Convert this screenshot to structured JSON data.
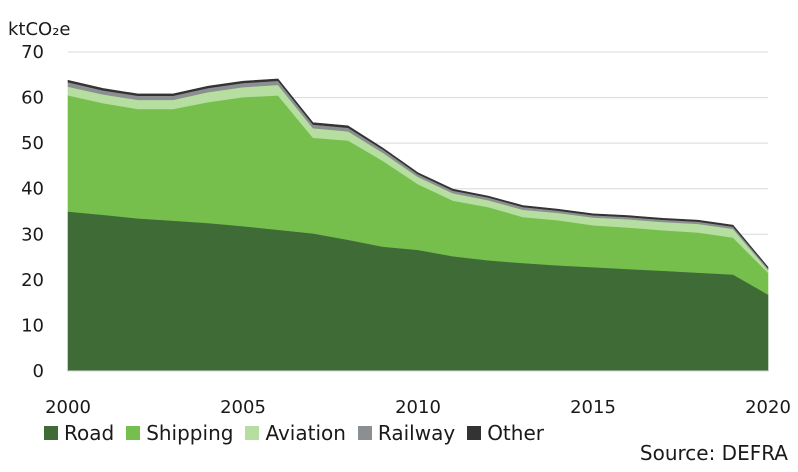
{
  "chart_data": {
    "type": "area",
    "stacked": true,
    "ylabel": "ktCO₂e",
    "xlabel": "",
    "ylim": [
      0,
      70
    ],
    "yticks": [
      0,
      10,
      20,
      30,
      40,
      50,
      60,
      70
    ],
    "xlim": [
      2000,
      2020
    ],
    "xticks": [
      2000,
      2005,
      2010,
      2015,
      2020
    ],
    "grid": "horizontal",
    "legend_position": "bottom",
    "x": [
      2000,
      2001,
      2002,
      2003,
      2004,
      2005,
      2006,
      2007,
      2008,
      2009,
      2010,
      2011,
      2012,
      2013,
      2014,
      2015,
      2016,
      2017,
      2018,
      2019,
      2020
    ],
    "series": [
      {
        "name": "Road",
        "color": "#3f6b37",
        "values": [
          35.0,
          34.3,
          33.5,
          33.0,
          32.5,
          31.8,
          31.0,
          30.2,
          28.8,
          27.3,
          26.6,
          25.2,
          24.3,
          23.7,
          23.2,
          22.8,
          22.4,
          22.0,
          21.6,
          21.2,
          16.8
        ]
      },
      {
        "name": "Shipping",
        "color": "#76bf4d",
        "values": [
          25.5,
          24.5,
          24.0,
          24.5,
          26.5,
          28.3,
          29.5,
          21.0,
          21.8,
          18.8,
          14.4,
          12.2,
          11.7,
          10.1,
          9.9,
          9.2,
          9.1,
          8.9,
          8.8,
          8.1,
          4.8
        ]
      },
      {
        "name": "Aviation",
        "color": "#b5dea0",
        "values": [
          1.9,
          1.9,
          2.0,
          2.0,
          2.2,
          2.2,
          2.3,
          2.1,
          2.0,
          1.8,
          1.6,
          1.6,
          1.5,
          1.6,
          1.6,
          1.7,
          1.8,
          1.8,
          1.9,
          1.9,
          0.6
        ]
      },
      {
        "name": "Railway",
        "color": "#8c8f91",
        "values": [
          1.0,
          0.9,
          0.9,
          0.9,
          0.9,
          0.9,
          0.9,
          0.8,
          0.8,
          0.7,
          0.6,
          0.6,
          0.6,
          0.6,
          0.5,
          0.5,
          0.5,
          0.5,
          0.5,
          0.5,
          0.4
        ]
      },
      {
        "name": "Other",
        "color": "#333333",
        "values": [
          0.4,
          0.4,
          0.4,
          0.4,
          0.4,
          0.4,
          0.4,
          0.4,
          0.4,
          0.3,
          0.3,
          0.3,
          0.3,
          0.3,
          0.3,
          0.3,
          0.3,
          0.3,
          0.3,
          0.3,
          0.2
        ]
      }
    ]
  },
  "source": "Source: DEFRA"
}
